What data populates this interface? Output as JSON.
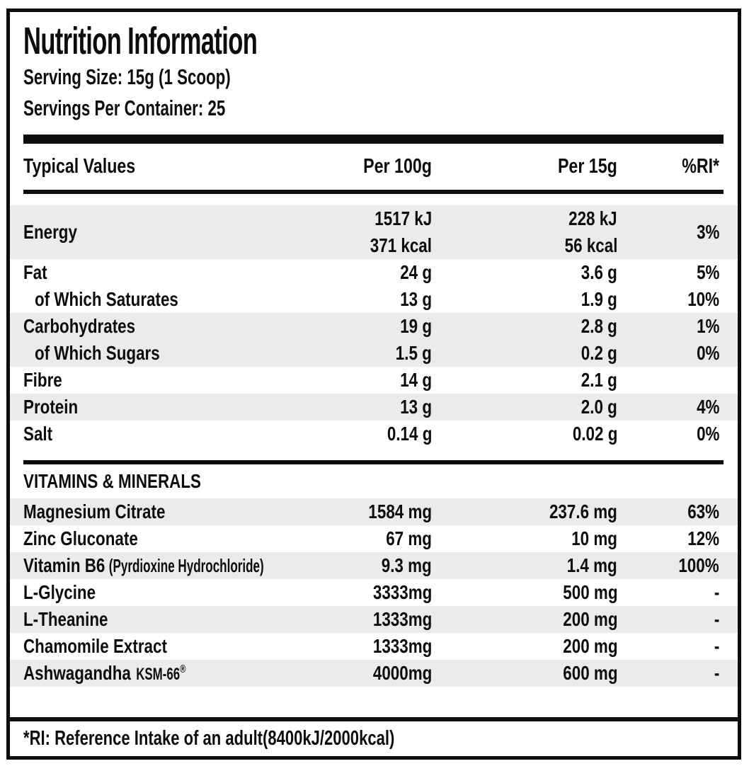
{
  "header": {
    "title": "Nutrition Information",
    "serving_size": "Serving Size: 15g (1 Scoop)",
    "servings_per_container": "Servings Per Container: 25"
  },
  "columns": {
    "typical_values": "Typical Values",
    "per_100g": "Per 100g",
    "per_15g": "Per 15g",
    "ri": "%RI*"
  },
  "table": {
    "rows": [
      {
        "label": "Energy",
        "per100": "1517 kJ",
        "per100_2": "371 kcal",
        "per15": "228 kJ",
        "per15_2": "56 kcal",
        "ri": "3%"
      },
      {
        "label": "Fat",
        "per100": "24 g",
        "per15": "3.6 g",
        "ri": "5%"
      },
      {
        "label": "of Which Saturates",
        "per100": "13 g",
        "per15": "1.9 g",
        "ri": "10%"
      },
      {
        "label": "Carbohydrates",
        "per100": "19 g",
        "per15": "2.8 g",
        "ri": "1%"
      },
      {
        "label": "of Which Sugars",
        "per100": "1.5 g",
        "per15": "0.2 g",
        "ri": "0%"
      },
      {
        "label": "Fibre",
        "per100": "14 g",
        "per15": "2.1 g",
        "ri": ""
      },
      {
        "label": "Protein",
        "per100": "13 g",
        "per15": "2.0 g",
        "ri": "4%"
      },
      {
        "label": "Salt",
        "per100": "0.14 g",
        "per15": "0.02 g",
        "ri": "0%"
      }
    ]
  },
  "vitamins": {
    "section_title": "VITAMINS & MINERALS",
    "rows": [
      {
        "label": "Magnesium Citrate",
        "per100": "1584 mg",
        "per15": "237.6 mg",
        "ri": "63%"
      },
      {
        "label": "Zinc Gluconate",
        "per100": "67 mg",
        "per15": "10 mg",
        "ri": "12%"
      },
      {
        "label": "Vitamin B6",
        "suffix": "(Pyrdioxine Hydrochloride)",
        "per100": "9.3 mg",
        "per15": "1.4 mg",
        "ri": "100%"
      },
      {
        "label": "L-Glycine",
        "per100": "3333mg",
        "per15": "500 mg",
        "ri": "-"
      },
      {
        "label": "L-Theanine",
        "per100": "1333mg",
        "per15": "200 mg",
        "ri": "-"
      },
      {
        "label": "Chamomile Extract",
        "per100": "1333mg",
        "per15": "200 mg",
        "ri": "-"
      },
      {
        "label": "Ashwagandha",
        "suffix": "KSM-66",
        "suffix_sup": "®",
        "per100": "4000mg",
        "per15": "600 mg",
        "ri": "-"
      }
    ]
  },
  "footnote": "*RI: Reference Intake of an adult(8400kJ/2000kcal)",
  "colors": {
    "text": "#0d0d0d",
    "row_shade": "#ebebeb",
    "background": "#ffffff"
  }
}
